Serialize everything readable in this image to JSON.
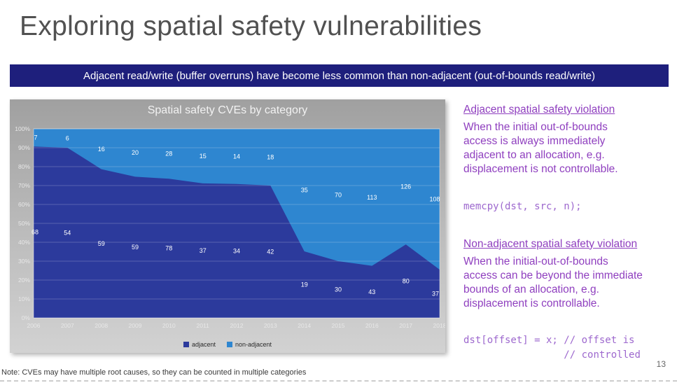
{
  "slide": {
    "title": "Exploring spatial safety vulnerabilities",
    "banner": "Adjacent read/write (buffer overruns) have become less common than non-adjacent (out-of-bounds read/write)",
    "note": "Note: CVEs may have multiple root causes, so they can be counted in multiple categories",
    "page_number": "13"
  },
  "colors": {
    "banner_bg": "#1e1f7c",
    "accent_purple": "#8f3fbf",
    "code_purple": "#9d68ce",
    "adjacent": "#2c3a9c",
    "non_adjacent": "#2e86d0"
  },
  "chart_data": {
    "type": "area",
    "stacked": "percent",
    "title": "Spatial safety CVEs by category",
    "categories": [
      "2006",
      "2007",
      "2008",
      "2009",
      "2010",
      "2011",
      "2012",
      "2013",
      "2014",
      "2015",
      "2016",
      "2017",
      "2018"
    ],
    "series": [
      {
        "name": "adjacent",
        "color": "#2c3a9c",
        "values": [
          68,
          54,
          59,
          59,
          78,
          37,
          34,
          42,
          19,
          30,
          43,
          80,
          37
        ]
      },
      {
        "name": "non-adjacent",
        "color": "#2e86d0",
        "values": [
          7,
          6,
          16,
          20,
          28,
          15,
          14,
          18,
          35,
          70,
          113,
          126,
          108
        ]
      }
    ],
    "y_ticks": [
      "0%",
      "10%",
      "20%",
      "30%",
      "40%",
      "50%",
      "60%",
      "70%",
      "80%",
      "90%",
      "100%"
    ],
    "ylim": [
      0,
      100
    ],
    "grid": true,
    "legend_position": "bottom"
  },
  "sidebar": {
    "adjacent": {
      "heading": "Adjacent spatial safety violation",
      "body": "When the initial out-of-bounds access is always immediately adjacent to an allocation, e.g. displacement is not controllable.",
      "code": "memcpy(dst, src, n);"
    },
    "non_adjacent": {
      "heading": "Non-adjacent spatial safety violation",
      "body": "When the initial-out-of-bounds access can be beyond the immediate bounds of an allocation, e.g. displacement is controllable.",
      "code": "dst[offset] = x; // offset is\n                 // controlled"
    }
  }
}
